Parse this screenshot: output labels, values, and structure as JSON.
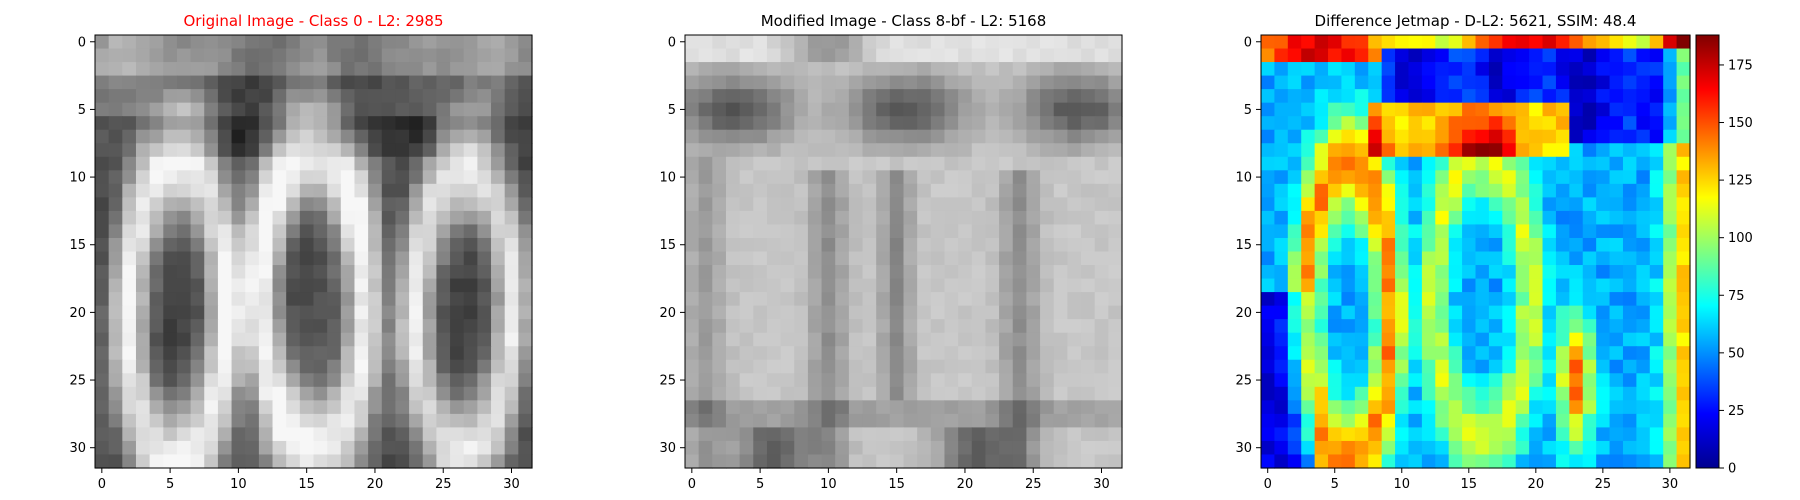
{
  "chart_data": [
    {
      "type": "heatmap",
      "title": "Original Image - Class 0 - L2: 2985",
      "title_color": "#ff0000",
      "colormap": "gray",
      "grid": false,
      "x_range": [
        0,
        31
      ],
      "y_range": [
        0,
        31
      ],
      "xticks": [
        0,
        5,
        10,
        15,
        20,
        25,
        30
      ],
      "yticks": [
        0,
        5,
        10,
        15,
        20,
        25,
        30
      ],
      "content": "grayscale 32x32 crop of digits '00' (white strokes on dark background)"
    },
    {
      "type": "heatmap",
      "title": "Modified Image - Class 8-bf - L2: 5168",
      "title_color": "#000000",
      "colormap": "gray",
      "grid": false,
      "x_range": [
        0,
        31
      ],
      "y_range": [
        0,
        31
      ],
      "xticks": [
        0,
        5,
        10,
        15,
        20,
        25,
        30
      ],
      "yticks": [
        0,
        5,
        10,
        15,
        20,
        25,
        30
      ],
      "content": "light grayscale 32x32 image with faint vertical strokes and dark top band"
    },
    {
      "type": "heatmap",
      "title": "Difference Jetmap - D-L2: 5621, SSIM: 48.4",
      "title_color": "#000000",
      "colormap": "jet",
      "grid": false,
      "x_range": [
        0,
        31
      ],
      "y_range": [
        0,
        31
      ],
      "xticks": [
        0,
        5,
        10,
        15,
        20,
        25,
        30
      ],
      "yticks": [
        0,
        5,
        10,
        15,
        20,
        25,
        30
      ],
      "colorbar": {
        "range": [
          0,
          188
        ],
        "ticks": [
          0,
          25,
          50,
          75,
          100,
          125,
          150,
          175
        ]
      }
    }
  ]
}
